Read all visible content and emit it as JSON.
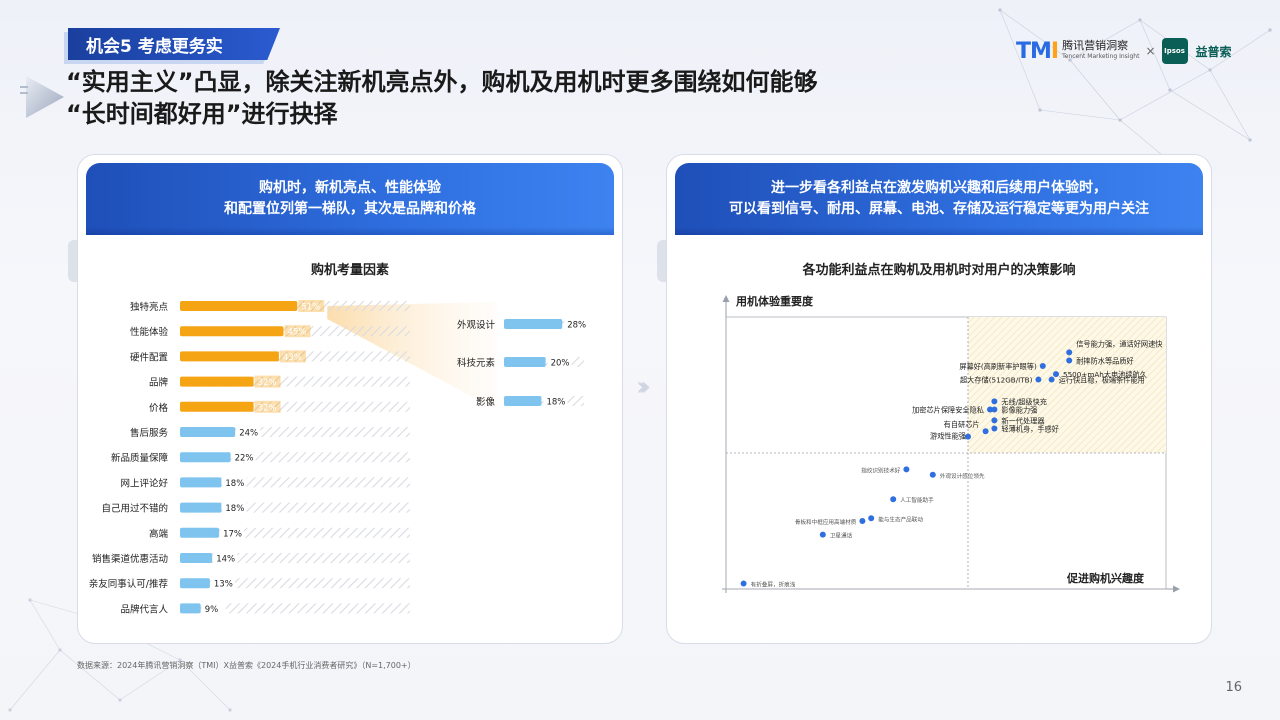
{
  "header": {
    "badge": "机会5  考虑更务实",
    "headline_line1": "“实用主义”凸显，除关注新机亮点外，购机及用机时更多围绕如何能够",
    "headline_line2": "“长时间都好用”进行抉择"
  },
  "logo": {
    "tmi_mark": "TMI",
    "tmi_cn": "腾讯营销洞察",
    "tmi_en": "Tencent Marketing Insight",
    "separator": "×",
    "ipsos_mark": "Ipsos",
    "ipsos_cn": "益普索"
  },
  "left_card": {
    "head_line1": "购机时，新机亮点、性能体验",
    "head_line2": "和配置位列第一梯队，其次是品牌和价格"
  },
  "right_card": {
    "head_line1": "进一步看各利益点在激发购机兴趣和后续用户体验时，",
    "head_line2": "可以看到信号、耐用、屏幕、电池、存储及运行稳定等更为用户关注"
  },
  "colors": {
    "highlight_bar": "#f5a414",
    "normal_bar": "#7ec4ef",
    "dot": "#2f6fe0",
    "brand_blue": "#1f4fb8"
  },
  "chart_data": [
    {
      "type": "bar",
      "orientation": "horizontal",
      "title": "购机考量因素",
      "unit": "%",
      "categories": [
        "独特亮点",
        "性能体验",
        "硬件配置",
        "品牌",
        "价格",
        "售后服务",
        "新品质量保障",
        "网上评论好",
        "自己用过不错的",
        "高端",
        "销售渠道优惠活动",
        "亲友同事认可/推荐",
        "品牌代言人"
      ],
      "values": [
        51,
        45,
        43,
        32,
        32,
        24,
        22,
        18,
        18,
        17,
        14,
        13,
        9
      ],
      "labels": [
        "51%",
        "45%",
        "43%",
        "32%",
        "32%",
        "24%",
        "22%",
        "18%",
        "18%",
        "17%",
        "14%",
        "13%",
        "9%"
      ],
      "highlighted": [
        true,
        true,
        true,
        true,
        true,
        false,
        false,
        false,
        false,
        false,
        false,
        false,
        false
      ],
      "xlim": [
        0,
        100
      ]
    },
    {
      "type": "bar",
      "orientation": "horizontal",
      "breakdown_of": "独特亮点",
      "unit": "%",
      "categories": [
        "外观设计",
        "科技元素",
        "影像"
      ],
      "values": [
        28,
        20,
        18
      ],
      "labels": [
        "28%",
        "20%",
        "18%"
      ],
      "xlim": [
        0,
        100
      ]
    },
    {
      "type": "scatter",
      "title": "各功能利益点在购机及用机时对用户的决策影响",
      "xlabel": "促进购机兴趣度",
      "ylabel": "用机体验重要度",
      "quadrant_split": {
        "x": 0.55,
        "y": 0.5
      },
      "xlim": [
        0,
        1
      ],
      "ylim": [
        0,
        1
      ],
      "points": [
        {
          "label": "信号能力强，通话好网速快",
          "x": 0.78,
          "y": 0.87
        },
        {
          "label": "耐摔防水等品质好",
          "x": 0.78,
          "y": 0.84
        },
        {
          "label": "屏幕好(高刷新率护眼等)",
          "x": 0.72,
          "y": 0.82
        },
        {
          "label": "5500+mAh大电池续航久",
          "x": 0.75,
          "y": 0.79
        },
        {
          "label": "超大存储(512GB/ITB)",
          "x": 0.71,
          "y": 0.77
        },
        {
          "label": "运行快且稳，极端条件能用",
          "x": 0.74,
          "y": 0.77
        },
        {
          "label": "无线/超级快充",
          "x": 0.61,
          "y": 0.69
        },
        {
          "label": "加密芯片保障安全隐私",
          "x": 0.6,
          "y": 0.66
        },
        {
          "label": "影像能力强",
          "x": 0.61,
          "y": 0.66
        },
        {
          "label": "新一代处理器",
          "x": 0.61,
          "y": 0.62
        },
        {
          "label": "有自研芯片",
          "x": 0.59,
          "y": 0.58
        },
        {
          "label": "轻薄机身，手感好",
          "x": 0.61,
          "y": 0.59
        },
        {
          "label": "游戏性能强",
          "x": 0.55,
          "y": 0.56
        },
        {
          "label": "指纹识别技术好",
          "x": 0.41,
          "y": 0.44
        },
        {
          "label": "外观设计感位领先",
          "x": 0.47,
          "y": 0.42
        },
        {
          "label": "人工智能助手",
          "x": 0.38,
          "y": 0.33
        },
        {
          "label": "能与生态产品联动",
          "x": 0.33,
          "y": 0.26
        },
        {
          "label": "骨板和中框应用高端材质",
          "x": 0.31,
          "y": 0.25
        },
        {
          "label": "卫星通话",
          "x": 0.22,
          "y": 0.2
        },
        {
          "label": "有折叠屏，折痕浅",
          "x": 0.04,
          "y": 0.02
        }
      ]
    }
  ],
  "footer": {
    "source": "数据来源：2024年腾讯营销洞察（TMI）X益普索《2024手机行业消费者研究》（N=1,700+）",
    "page": "16"
  }
}
